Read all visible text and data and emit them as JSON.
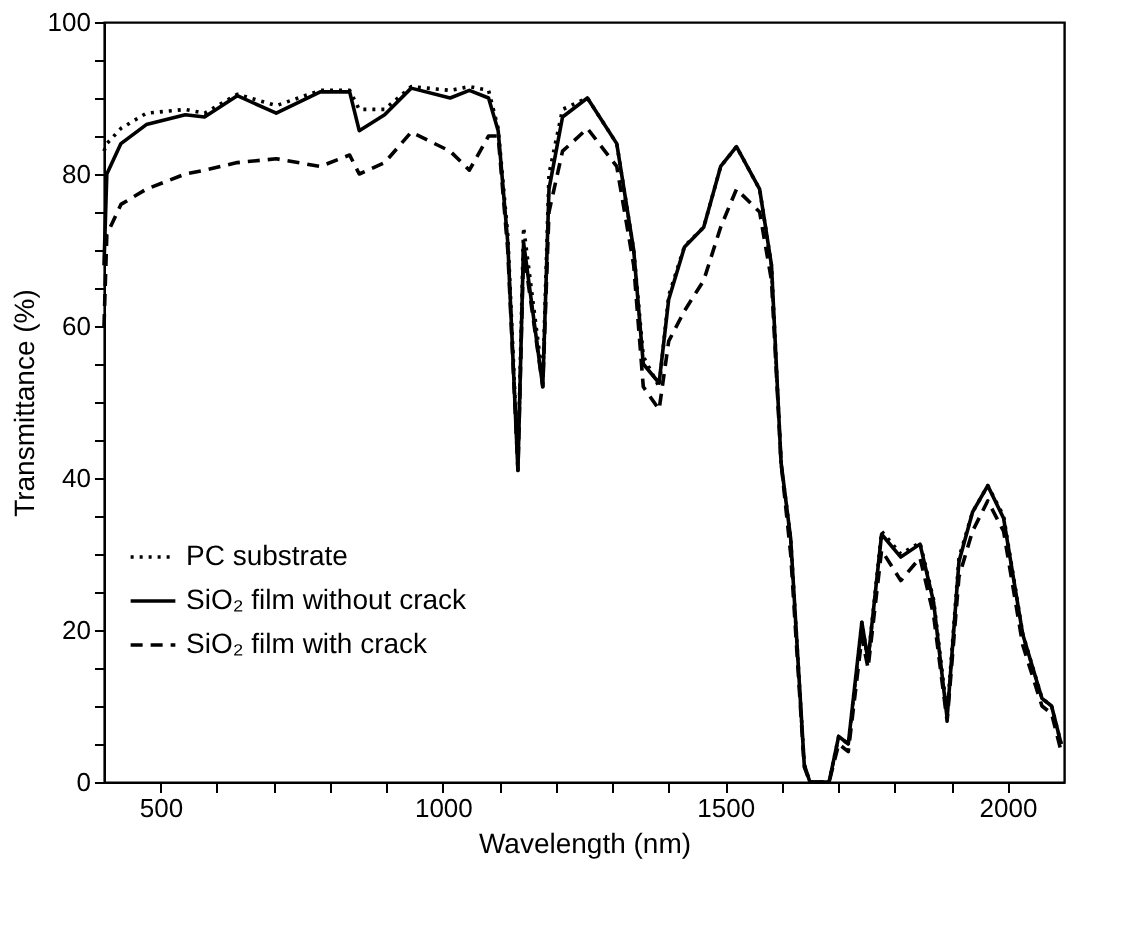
{
  "chart_data": {
    "type": "line",
    "xlabel": "Wavelength (nm)",
    "ylabel": "Transmittance (%)",
    "xlim": [
      400,
      2100
    ],
    "ylim": [
      0,
      100
    ],
    "xticks": [
      500,
      {
        "value": 600,
        "label": null
      },
      {
        "value": 700,
        "label": null
      },
      {
        "value": 800,
        "label": null
      },
      {
        "value": 900,
        "label": null
      },
      1000,
      {
        "value": 1100,
        "label": null
      },
      {
        "value": 1200,
        "label": null
      },
      {
        "value": 1300,
        "label": null
      },
      {
        "value": 1400,
        "label": null
      },
      1500,
      {
        "value": 1600,
        "label": null
      },
      {
        "value": 1700,
        "label": null
      },
      {
        "value": 1800,
        "label": null
      },
      {
        "value": 1900,
        "label": null
      },
      2000
    ],
    "yticks": [
      0,
      {
        "value": 5,
        "label": null
      },
      {
        "value": 10,
        "label": null
      },
      {
        "value": 15,
        "label": null
      },
      20,
      {
        "value": 25,
        "label": null
      },
      {
        "value": 30,
        "label": null
      },
      {
        "value": 35,
        "label": null
      },
      40,
      {
        "value": 45,
        "label": null
      },
      {
        "value": 50,
        "label": null
      },
      {
        "value": 55,
        "label": null
      },
      60,
      {
        "value": 65,
        "label": null
      },
      {
        "value": 70,
        "label": null
      },
      {
        "value": 75,
        "label": null
      },
      80,
      {
        "value": 85,
        "label": null
      },
      {
        "value": 90,
        "label": null
      },
      {
        "value": 95,
        "label": null
      },
      100
    ],
    "x": [
      400,
      405,
      430,
      475,
      544,
      578,
      636,
      705,
      783,
      835,
      852,
      897,
      944,
      1013,
      1047,
      1081,
      1098,
      1115,
      1133,
      1143,
      1177,
      1188,
      1212,
      1256,
      1308,
      1338,
      1355,
      1383,
      1400,
      1428,
      1462,
      1492,
      1520,
      1561,
      1582,
      1599,
      1616,
      1640,
      1650,
      1684,
      1701,
      1718,
      1742,
      1753,
      1777,
      1811,
      1845,
      1869,
      1893,
      1914,
      1938,
      1965,
      1993,
      2027,
      2061,
      2078,
      2095
    ],
    "grid": false,
    "legend": "bottom left",
    "marker": "none",
    "series": [
      {
        "name": "PC substrate",
        "color": "#000000",
        "line_style": "dotted",
        "values": [
          83,
          84,
          86,
          88,
          88.5,
          88,
          90.5,
          89,
          91,
          91,
          88.5,
          88.5,
          91.5,
          91,
          91.5,
          91,
          86,
          72,
          42,
          73,
          53,
          80,
          88.5,
          90,
          84,
          70,
          56,
          52,
          64,
          70.5,
          73,
          81,
          83.6,
          78,
          68,
          42,
          32,
          2.3,
          0,
          0,
          6,
          5,
          21,
          16,
          33,
          30,
          31.5,
          24,
          9,
          29.5,
          35.5,
          39,
          35,
          19.5,
          11,
          10,
          5
        ]
      },
      {
        "name": "SiO₂ film without crack",
        "color": "#000000",
        "line_style": "solid",
        "values": [
          68,
          80,
          84,
          86.5,
          87.8,
          87.5,
          90.3,
          88,
          90.8,
          90.8,
          85.7,
          87.8,
          91.3,
          90,
          91,
          90,
          85.7,
          71,
          41,
          71,
          52,
          78,
          87.5,
          90,
          84,
          70,
          55,
          52.5,
          63.5,
          70.4,
          73,
          81,
          83.6,
          78,
          68,
          42,
          32,
          2.3,
          0,
          0,
          6,
          5,
          21,
          16,
          32.6,
          29.6,
          31.3,
          23.7,
          8.4,
          29,
          35.5,
          39,
          34.7,
          19.4,
          11,
          10,
          5
        ]
      },
      {
        "name": "SiO₂ film with crack",
        "color": "#000000",
        "line_style": "dashed",
        "values": [
          60,
          72,
          76,
          78,
          80,
          80.5,
          81.5,
          82,
          81,
          82.5,
          80,
          81.5,
          85.5,
          83,
          80.5,
          85,
          85,
          70,
          41,
          70,
          52,
          75,
          83,
          86,
          81,
          68,
          52,
          49,
          58,
          62,
          66,
          73,
          78,
          75,
          66,
          42,
          30,
          2,
          0,
          0,
          5,
          4,
          19,
          15,
          30.5,
          26.5,
          29.5,
          22,
          8,
          27,
          33,
          37,
          33,
          18,
          10,
          9,
          4
        ]
      }
    ]
  }
}
